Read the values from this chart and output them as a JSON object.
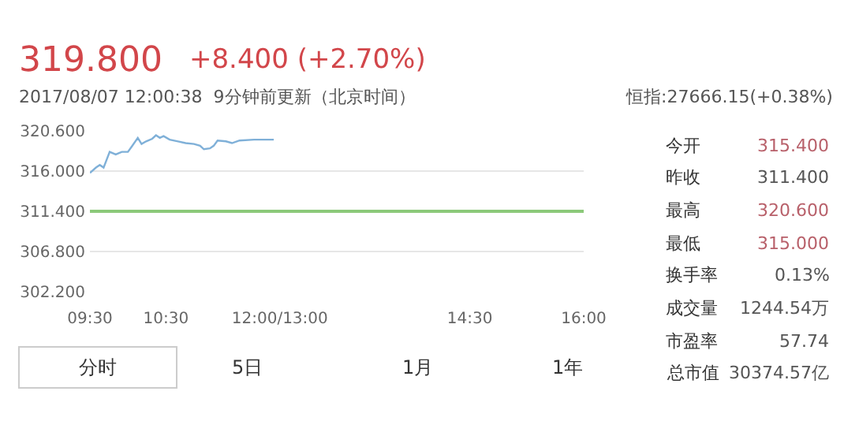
{
  "chart_data": {
    "type": "line",
    "title": "319.800",
    "subtitle": "+8.400 (+2.70%)",
    "annotations": [
      "2017/08/07 12:00:38  9分钟前更新（北京时间）",
      "恒指:27666.15(+0.38%)",
      "今开",
      "315.400",
      "昨收",
      "311.400",
      "最高",
      "320.600",
      "最低",
      "315.000",
      "换手率",
      "0.13%",
      "成交量",
      "1244.54万",
      "市盈率",
      "57.74",
      "总市值",
      "30374.57亿",
      "分时",
      "5日",
      "1月",
      "1年"
    ],
    "x": [
      9.5,
      9.58,
      9.63,
      9.68,
      9.76,
      9.84,
      9.92,
      10.0,
      10.05,
      10.13,
      10.18,
      10.24,
      10.32,
      10.37,
      10.42,
      10.47,
      10.55,
      10.66,
      10.76,
      10.87,
      10.95,
      11.0,
      11.08,
      11.13,
      11.18,
      11.29,
      11.37,
      11.47,
      11.66,
      11.92
    ],
    "series": [
      {
        "color": "#7fb0d8",
        "values": [
          315.8,
          316.4,
          316.7,
          316.4,
          318.2,
          317.9,
          318.2,
          318.2,
          318.8,
          319.8,
          319.1,
          319.4,
          319.7,
          320.1,
          319.8,
          320.0,
          319.6,
          319.4,
          319.2,
          319.1,
          318.9,
          318.5,
          318.6,
          318.9,
          319.5,
          319.4,
          319.2,
          319.5,
          319.6,
          319.6
        ]
      }
    ],
    "xlim": [
      9.5,
      16
    ],
    "xticks": [
      {
        "value": 9.5,
        "label": "09:30"
      },
      {
        "value": 10.5,
        "label": "10:30"
      },
      {
        "value": 12,
        "label": "12:00/13:00"
      },
      {
        "value": 14.5,
        "label": "14:30"
      },
      {
        "value": 16,
        "label": "16:00"
      }
    ],
    "ylim": [
      302.2,
      320.6
    ],
    "yticks": [
      {
        "value": 302.2,
        "label": "302.200"
      },
      {
        "value": 306.8,
        "label": "306.800"
      },
      {
        "value": 311.4,
        "label": "311.400"
      },
      {
        "value": 316.0,
        "label": "316.000"
      },
      {
        "value": 320.6,
        "label": "320.600"
      }
    ],
    "ref_lines": [
      {
        "axis": "y",
        "value": 311.4,
        "color": "#8cc97a"
      }
    ],
    "grid": "y",
    "legend": false,
    "marker": "none",
    "line_style": "solid"
  }
}
